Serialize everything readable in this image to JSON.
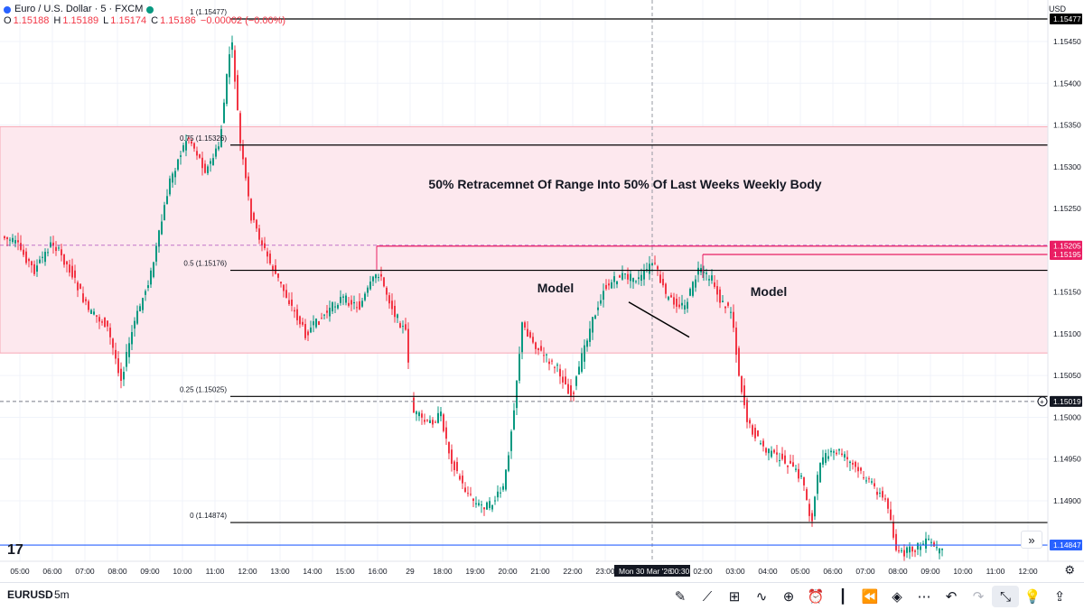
{
  "header": {
    "title": "Euro / U.S. Dollar · 5 · FXCM",
    "ohlc": [
      {
        "label": "O",
        "value": "1.15188"
      },
      {
        "label": "H",
        "value": "1.15189"
      },
      {
        "label": "L",
        "value": "1.15174"
      },
      {
        "label": "C",
        "value": "1.15186"
      }
    ],
    "change": "−0.00002 (−0.00%)",
    "currency": "USD"
  },
  "colors": {
    "up": "#089981",
    "down": "#f23645",
    "zone_fill": "#fde8ee",
    "zone_border": "#f7a7b5",
    "level_line": "#000000",
    "blue_line": "#2962ff",
    "pink_line": "#e91e63",
    "grid": "#f0f3fa"
  },
  "chart_data": {
    "type": "candlestick",
    "symbol": "EURUSD",
    "interval": "5m",
    "ylim": [
      1.14815,
      1.1548
    ],
    "price_ticks": [
      "1.15450",
      "1.15400",
      "1.15350",
      "1.15300",
      "1.15250",
      "1.15150",
      "1.15100",
      "1.15050",
      "1.15000",
      "1.14950",
      "1.14900"
    ],
    "time_ticks": [
      "05:00",
      "06:00",
      "07:00",
      "08:00",
      "09:00",
      "10:00",
      "11:00",
      "12:00",
      "13:00",
      "14:00",
      "15:00",
      "16:00",
      "29",
      "18:00",
      "19:00",
      "20:00",
      "21:00",
      "22:00",
      "23:00",
      "02:00",
      "03:00",
      "04:00",
      "05:00",
      "06:00",
      "07:00",
      "08:00",
      "09:00",
      "10:00",
      "11:00",
      "12:00"
    ],
    "time_tick_x": [
      22,
      58,
      94,
      130,
      166,
      202,
      238,
      274,
      310,
      346,
      382,
      418,
      454,
      490,
      526,
      562,
      598,
      634,
      670,
      778,
      814,
      850,
      886,
      922,
      958,
      994,
      1030,
      1066,
      1102,
      1138
    ],
    "crosshair": {
      "time_label": "Mon 30 Mar '26",
      "time_label2": "00:30",
      "price_label": "1.15019",
      "price": 1.15019
    },
    "zone": {
      "top": 1.15348,
      "bottom": 1.15077
    },
    "fib_levels": [
      {
        "label": "1 (1.15477)",
        "price": 1.15477
      },
      {
        "label": "0.75 (1.15326)",
        "price": 1.15326
      },
      {
        "label": "0.5 (1.15176)",
        "price": 1.15176
      },
      {
        "label": "0.25 (1.15025)",
        "price": 1.15025
      },
      {
        "label": "0 (1.14874)",
        "price": 1.14874
      }
    ],
    "horizontal_rays": [
      {
        "price": 1.15205,
        "label": "1.15205"
      },
      {
        "price": 1.15195,
        "label": "1.15195"
      }
    ],
    "blue_line": {
      "price": 1.14847,
      "label": "1.14847"
    },
    "last_price_dashed": 1.15206,
    "low_dashed": 1.15019,
    "annotations": [
      "50% Retracemnet Of Range Into 50% Of Last Weeks Weekly Body",
      "Model",
      "Model"
    ],
    "trendline": {
      "from_price": 1.15138,
      "to_price": 1.15096
    }
  },
  "bottom_bar": {
    "symbol": "EURUSD",
    "timeframe": "5m",
    "tools": [
      "pen-icon",
      "chart-analysis-icon",
      "grid-icon",
      "trend-icon",
      "plus-circle-icon",
      "alert-icon",
      "bars-icon",
      "replay-icon",
      "layers-icon",
      "more-icon",
      "undo-icon",
      "redo-icon",
      "collapse-icon",
      "bulb-icon",
      "share-icon"
    ]
  },
  "logo": "17"
}
